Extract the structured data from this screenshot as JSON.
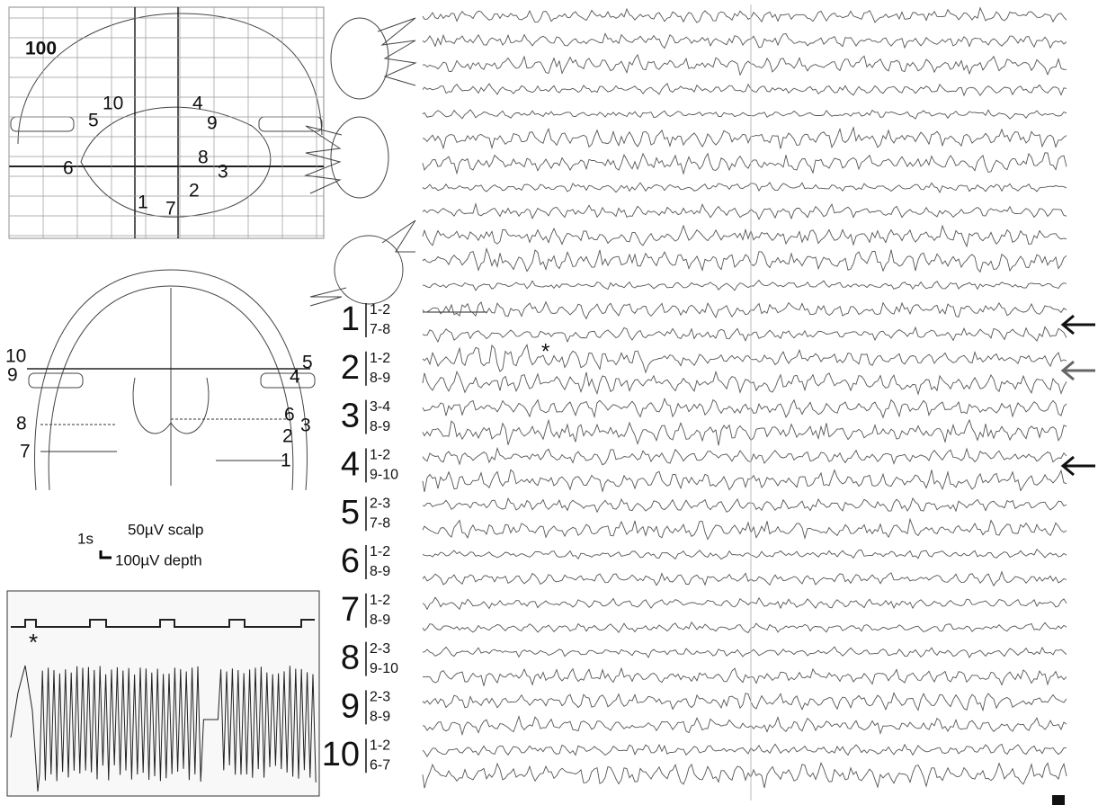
{
  "sagittal": {
    "label": "100",
    "electrodes": [
      "5",
      "10",
      "4",
      "9",
      "6",
      "8",
      "3",
      "2",
      "1",
      "7"
    ]
  },
  "coronal": {
    "electrodes": [
      "10",
      "9",
      "4",
      "5",
      "8",
      "7",
      "6",
      "3",
      "2",
      "1"
    ]
  },
  "scale": {
    "time": "1s",
    "scalp": "50µV scalp",
    "depth": "100µV depth"
  },
  "inset": {
    "marker": "*"
  },
  "traces": {
    "marker": "*",
    "channels": [
      {
        "label": "1",
        "pairs": [
          "1-2",
          "7-8"
        ]
      },
      {
        "label": "2",
        "pairs": [
          "1-2",
          "8-9"
        ]
      },
      {
        "label": "3",
        "pairs": [
          "3-4",
          "8-9"
        ]
      },
      {
        "label": "4",
        "pairs": [
          "1-2",
          "9-10"
        ]
      },
      {
        "label": "5",
        "pairs": [
          "2-3",
          "7-8"
        ]
      },
      {
        "label": "6",
        "pairs": [
          "1-2",
          "8-9"
        ]
      },
      {
        "label": "7",
        "pairs": [
          "1-2",
          "8-9"
        ]
      },
      {
        "label": "8",
        "pairs": [
          "2-3",
          "9-10"
        ]
      },
      {
        "label": "9",
        "pairs": [
          "2-3",
          "8-9"
        ]
      },
      {
        "label": "10",
        "pairs": [
          "1-2",
          "6-7"
        ]
      }
    ]
  }
}
